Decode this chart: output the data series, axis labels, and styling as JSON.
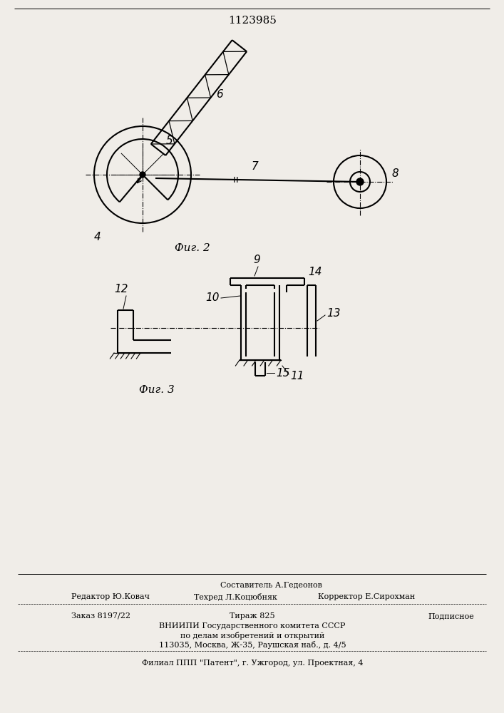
{
  "patent_number": "1123985",
  "bg_color": "#f0ede8",
  "line_color": "#000000",
  "fig2_caption": "Фиг. 2",
  "fig3_caption": "Фиг. 3"
}
